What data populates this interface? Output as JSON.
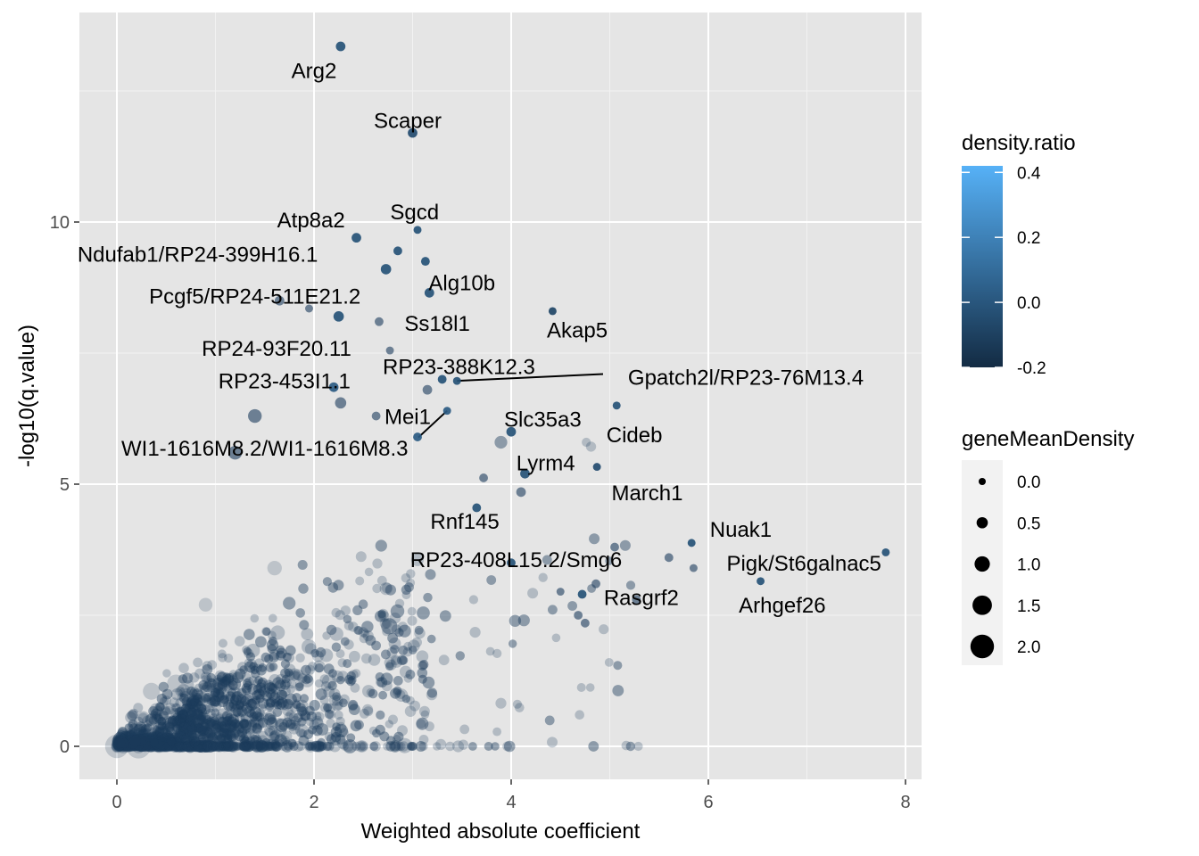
{
  "chart_data": {
    "type": "scatter",
    "title": "",
    "xlabel": "Weighted absolute coefficient",
    "ylabel": "-log10(q.value)",
    "xlim": [
      -0.4,
      8.15
    ],
    "ylim": [
      -0.6,
      13.8
    ],
    "x_ticks": [
      0,
      2,
      4,
      6,
      8
    ],
    "y_ticks": [
      0,
      5,
      10
    ],
    "grid": true,
    "panel_background": "#e5e5e5",
    "color_scale": {
      "title": "density.ratio",
      "min": -0.2,
      "max": 0.42,
      "low_color": "#132b43",
      "high_color": "#56b1f7",
      "breaks": [
        "0.4",
        "0.2",
        "0.0",
        "-0.2"
      ],
      "break_values": [
        0.4,
        0.2,
        0.0,
        -0.2
      ]
    },
    "size_scale": {
      "title": "geneMeanDensity",
      "breaks": [
        "0.0",
        "0.5",
        "1.0",
        "1.5",
        "2.0"
      ],
      "break_values": [
        0.0,
        0.5,
        1.0,
        1.5,
        2.0
      ]
    },
    "labeled_points": [
      {
        "label": "Arg2",
        "x": 2.27,
        "y": 13.35,
        "density_ratio": -0.02,
        "gene_mean_density": 0.3,
        "label_x": 2.0,
        "label_y": 12.9
      },
      {
        "label": "Scaper",
        "x": 3.0,
        "y": 11.7,
        "density_ratio": -0.05,
        "gene_mean_density": 0.3,
        "label_x": 2.95,
        "label_y": 11.95
      },
      {
        "label": "Sgcd",
        "x": 3.05,
        "y": 9.85,
        "density_ratio": -0.02,
        "gene_mean_density": 0.1,
        "label_x": 3.02,
        "label_y": 10.2
      },
      {
        "label": "Atp8a2",
        "x": 2.43,
        "y": 9.7,
        "density_ratio": -0.02,
        "gene_mean_density": 0.3,
        "label_x": 1.97,
        "label_y": 10.05
      },
      {
        "label": "Ndufab1/RP24-399H16.1",
        "x": 2.85,
        "y": 9.45,
        "density_ratio": -0.02,
        "gene_mean_density": 0.2,
        "label_x": 0.82,
        "label_y": 9.4
      },
      {
        "label": "Alg10b",
        "x": 3.13,
        "y": 9.25,
        "density_ratio": -0.02,
        "gene_mean_density": 0.2,
        "label_x": 3.5,
        "label_y": 8.85
      },
      {
        "label": "Pcgf5/RP24-511E21.2",
        "x": 2.73,
        "y": 9.1,
        "density_ratio": -0.02,
        "gene_mean_density": 0.4,
        "label_x": 1.4,
        "label_y": 8.6
      },
      {
        "label": "Ss18l1",
        "x": 3.17,
        "y": 8.65,
        "density_ratio": -0.02,
        "gene_mean_density": 0.3,
        "label_x": 3.25,
        "label_y": 8.08
      },
      {
        "label": "Akap5",
        "x": 4.42,
        "y": 8.3,
        "density_ratio": -0.08,
        "gene_mean_density": 0.1,
        "label_x": 4.67,
        "label_y": 7.95
      },
      {
        "label": "RP24-93F20.11",
        "x": 2.25,
        "y": 8.2,
        "density_ratio": -0.02,
        "gene_mean_density": 0.4,
        "label_x": 1.62,
        "label_y": 7.6
      },
      {
        "label": "RP23-388K12.3",
        "x": 3.3,
        "y": 7.0,
        "density_ratio": -0.02,
        "gene_mean_density": 0.2,
        "label_x": 3.47,
        "label_y": 7.25
      },
      {
        "label": "Gpatch2l/RP23-76M13.4",
        "x": 3.45,
        "y": 6.97,
        "density_ratio": -0.02,
        "gene_mean_density": 0.1,
        "label_x": 6.38,
        "label_y": 7.05,
        "segment": true
      },
      {
        "label": "RP23-453I1.1",
        "x": 2.2,
        "y": 6.85,
        "density_ratio": 0.02,
        "gene_mean_density": 0.3,
        "label_x": 1.7,
        "label_y": 6.98
      },
      {
        "label": "Mei1",
        "x": 3.35,
        "y": 6.4,
        "density_ratio": 0.02,
        "gene_mean_density": 0.1,
        "label_x": 2.95,
        "label_y": 6.3,
        "segment": true
      },
      {
        "label": "Slc35a3",
        "x": 4.0,
        "y": 6.0,
        "density_ratio": -0.02,
        "gene_mean_density": 0.3,
        "label_x": 4.32,
        "label_y": 6.25
      },
      {
        "label": "Cideb",
        "x": 5.07,
        "y": 6.5,
        "density_ratio": -0.02,
        "gene_mean_density": 0.1,
        "label_x": 5.25,
        "label_y": 5.95
      },
      {
        "label": "WI1-1616M8.2/WI1-1616M8.3",
        "x": 3.05,
        "y": 5.9,
        "density_ratio": 0.02,
        "gene_mean_density": 0.2,
        "label_x": 1.5,
        "label_y": 5.7
      },
      {
        "label": "Lyrm4",
        "x": 4.14,
        "y": 5.2,
        "density_ratio": -0.02,
        "gene_mean_density": 0.3,
        "label_x": 4.35,
        "label_y": 5.42
      },
      {
        "label": "March1",
        "x": 4.87,
        "y": 5.33,
        "density_ratio": -0.05,
        "gene_mean_density": 0.1,
        "label_x": 5.38,
        "label_y": 4.85
      },
      {
        "label": "Rnf145",
        "x": 3.65,
        "y": 4.55,
        "density_ratio": -0.02,
        "gene_mean_density": 0.2,
        "label_x": 3.53,
        "label_y": 4.3
      },
      {
        "label": "Nuak1",
        "x": 5.83,
        "y": 3.88,
        "density_ratio": -0.02,
        "gene_mean_density": 0.1,
        "label_x": 6.33,
        "label_y": 4.15
      },
      {
        "label": "RP23-408L15.2/Smg6",
        "x": 4.0,
        "y": 3.5,
        "density_ratio": -0.02,
        "gene_mean_density": 0.2,
        "label_x": 4.05,
        "label_y": 3.57
      },
      {
        "label": "Pigk/St6galnac5",
        "x": 7.8,
        "y": 3.7,
        "density_ratio": -0.02,
        "gene_mean_density": 0.1,
        "label_x": 6.97,
        "label_y": 3.5
      },
      {
        "label": "Rasgrf2",
        "x": 4.72,
        "y": 2.9,
        "density_ratio": -0.02,
        "gene_mean_density": 0.2,
        "label_x": 5.32,
        "label_y": 2.85
      },
      {
        "label": "Arhgef26",
        "x": 6.53,
        "y": 3.15,
        "density_ratio": -0.02,
        "gene_mean_density": 0.1,
        "label_x": 6.75,
        "label_y": 2.7
      }
    ],
    "unlabeled_highlights": [
      {
        "x": 1.65,
        "y": 8.5,
        "gene_mean_density": 0.3
      },
      {
        "x": 1.95,
        "y": 8.35,
        "gene_mean_density": 0.1
      },
      {
        "x": 2.66,
        "y": 8.1,
        "gene_mean_density": 0.2
      },
      {
        "x": 2.77,
        "y": 7.55,
        "gene_mean_density": 0.1
      },
      {
        "x": 2.27,
        "y": 6.55,
        "gene_mean_density": 0.5
      },
      {
        "x": 2.63,
        "y": 6.3,
        "gene_mean_density": 0.2
      },
      {
        "x": 1.4,
        "y": 6.3,
        "gene_mean_density": 0.8
      },
      {
        "x": 3.15,
        "y": 6.8,
        "gene_mean_density": 0.3
      },
      {
        "x": 1.2,
        "y": 5.6,
        "gene_mean_density": 0.8
      },
      {
        "x": 3.72,
        "y": 5.12,
        "gene_mean_density": 0.2
      },
      {
        "x": 4.1,
        "y": 4.85,
        "gene_mean_density": 0.3
      },
      {
        "x": 5.6,
        "y": 3.6,
        "gene_mean_density": 0.2
      },
      {
        "x": 5.85,
        "y": 3.4,
        "gene_mean_density": 0.1
      },
      {
        "x": 5.05,
        "y": 3.8,
        "gene_mean_density": 0.2
      },
      {
        "x": 4.75,
        "y": 2.35,
        "gene_mean_density": 0.2
      },
      {
        "x": 4.86,
        "y": 3.1,
        "gene_mean_density": 0.2
      },
      {
        "x": 4.68,
        "y": 2.5,
        "gene_mean_density": 0.2
      },
      {
        "x": 5.27,
        "y": 2.8,
        "gene_mean_density": 0.2
      },
      {
        "x": 4.5,
        "y": 2.95,
        "gene_mean_density": 0.1
      }
    ],
    "background_points": {
      "description": "approx. thousands of genes; dense cloud near origin rising roughly with x",
      "x_range": [
        0,
        5.5
      ],
      "y_range": [
        0,
        6.0
      ],
      "color": "#1d3d5c"
    }
  }
}
